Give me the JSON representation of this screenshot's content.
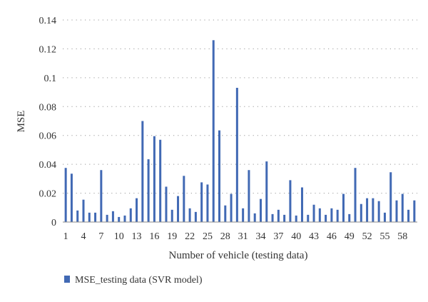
{
  "chart_data": {
    "type": "bar",
    "xlabel": "Number of vehicle (testing data)",
    "ylabel": "MSE",
    "xlim": [
      1,
      60
    ],
    "ylim": [
      0,
      0.14
    ],
    "y_ticks": [
      "0",
      "0.02",
      "0.04",
      "0.06",
      "0.08",
      "0.1",
      "0.12",
      "0.14"
    ],
    "x_ticks": [
      "1",
      "4",
      "7",
      "10",
      "13",
      "16",
      "19",
      "22",
      "25",
      "28",
      "31",
      "34",
      "37",
      "40",
      "43",
      "46",
      "49",
      "52",
      "55",
      "58"
    ],
    "grid": true,
    "legend_position": "bottom-left",
    "bar_color": "#4169b4",
    "series": [
      {
        "name": "MSE_testing data (SVR model)",
        "x": [
          1,
          2,
          3,
          4,
          5,
          6,
          7,
          8,
          9,
          10,
          11,
          12,
          13,
          14,
          15,
          16,
          17,
          18,
          19,
          20,
          21,
          22,
          23,
          24,
          25,
          26,
          27,
          28,
          29,
          30,
          31,
          32,
          33,
          34,
          35,
          36,
          37,
          38,
          39,
          40,
          41,
          42,
          43,
          44,
          45,
          46,
          47,
          48,
          49,
          50,
          51,
          52,
          53,
          54,
          55,
          56,
          57,
          58,
          59,
          60
        ],
        "values": [
          0.0375,
          0.0335,
          0.008,
          0.0155,
          0.0065,
          0.0065,
          0.036,
          0.005,
          0.0075,
          0.0035,
          0.0045,
          0.0095,
          0.0165,
          0.07,
          0.0435,
          0.0595,
          0.057,
          0.0245,
          0.0085,
          0.018,
          0.032,
          0.0095,
          0.007,
          0.0275,
          0.026,
          0.126,
          0.0635,
          0.0115,
          0.0195,
          0.093,
          0.0095,
          0.036,
          0.006,
          0.016,
          0.042,
          0.0055,
          0.0085,
          0.005,
          0.029,
          0.0045,
          0.024,
          0.005,
          0.012,
          0.0095,
          0.005,
          0.0095,
          0.0085,
          0.0195,
          0.0055,
          0.0375,
          0.0125,
          0.0165,
          0.0165,
          0.0145,
          0.0065,
          0.0345,
          0.015,
          0.0195,
          0.0085,
          0.015
        ]
      }
    ]
  }
}
